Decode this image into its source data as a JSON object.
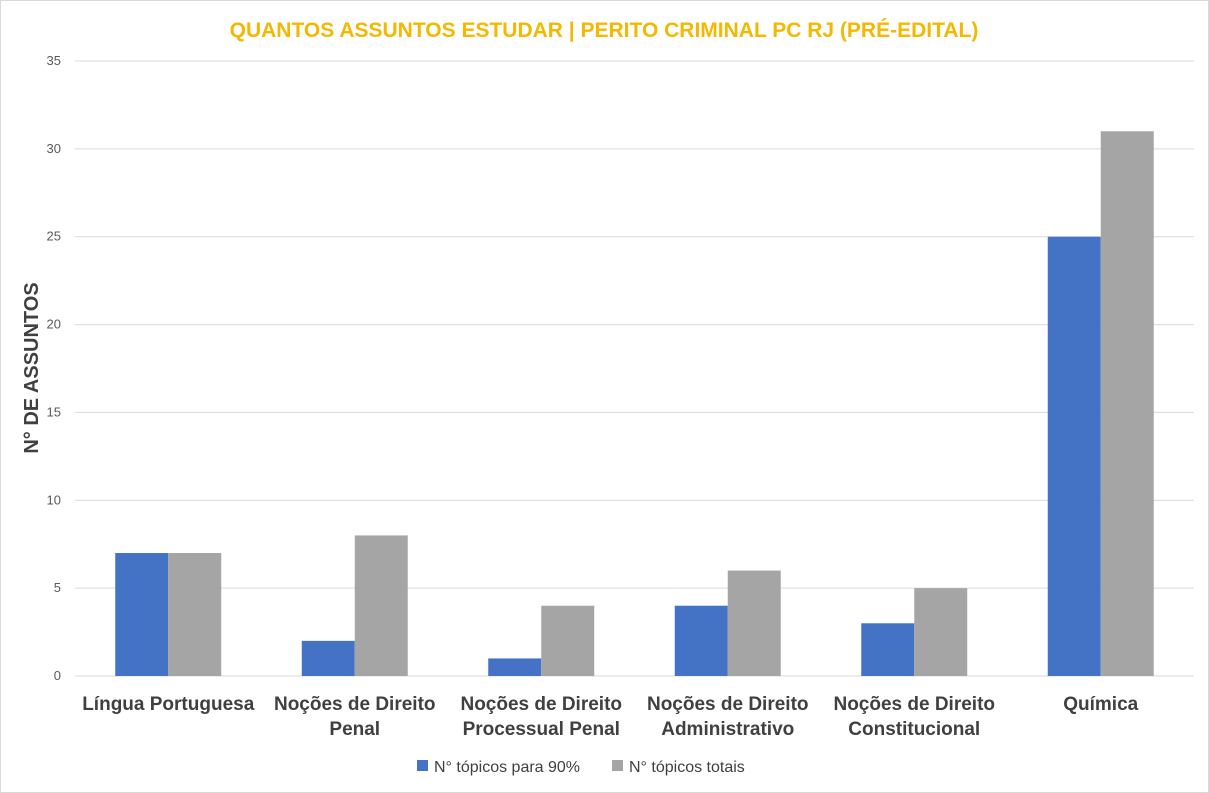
{
  "chart_data": {
    "type": "bar",
    "title": "QUANTOS ASSUNTOS ESTUDAR | PERITO CRIMINAL PC RJ (PRÉ-EDITAL)",
    "xlabel": "",
    "ylabel": "N° DE ASSUNTOS",
    "ylim": [
      0,
      35
    ],
    "yticks": [
      0,
      5,
      10,
      15,
      20,
      25,
      30,
      35
    ],
    "grid": true,
    "legend_position": "bottom",
    "categories": [
      [
        "Língua Portuguesa"
      ],
      [
        "Noções de Direito",
        "Penal"
      ],
      [
        "Noções de Direito",
        "Processual Penal"
      ],
      [
        "Noções de Direito",
        "Administrativo"
      ],
      [
        "Noções de Direito",
        "Constitucional"
      ],
      [
        "Química"
      ]
    ],
    "series": [
      {
        "name": "N° tópicos para 90%",
        "color": "#4472c4",
        "values": [
          7,
          2,
          1,
          4,
          3,
          25
        ]
      },
      {
        "name": "N° tópicos totais",
        "color": "#a5a5a5",
        "values": [
          7,
          8,
          4,
          6,
          5,
          31
        ]
      }
    ]
  }
}
